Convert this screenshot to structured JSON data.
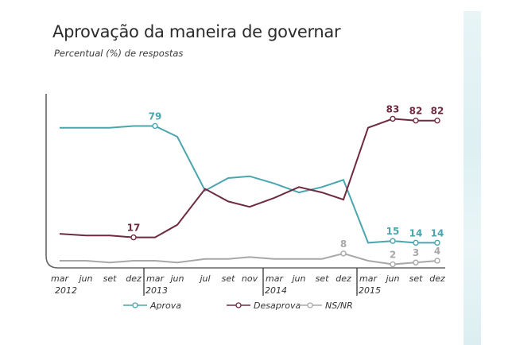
{
  "chart_data": {
    "type": "line",
    "title": "Aprovação da maneira de governar",
    "subtitle": "Percentual (%) de respostas",
    "xlabel": "",
    "ylabel": "",
    "ylim": [
      0,
      90
    ],
    "grid": false,
    "legend_position": "bottom",
    "x": [
      "mar 2012",
      "jun 2012",
      "set 2012",
      "dez 2012",
      "mar 2013",
      "jun 2013",
      "jul 2013",
      "set 2013",
      "nov 2013",
      "mar 2014",
      "jun 2014",
      "set 2014",
      "dez 2014",
      "mar 2015",
      "jun 2015",
      "set 2015",
      "dez 2015"
    ],
    "tick_labels": [
      "mar",
      "jun",
      "set",
      "dez",
      "mar",
      "jun",
      "jul",
      "set",
      "nov",
      "mar",
      "jun",
      "set",
      "dez",
      "mar",
      "jun",
      "set",
      "dez"
    ],
    "year_labels": [
      {
        "label": "2012",
        "index": 0
      },
      {
        "label": "2013",
        "index": 4
      },
      {
        "label": "2014",
        "index": 9
      },
      {
        "label": "2015",
        "index": 13
      }
    ],
    "series": [
      {
        "name": "Aprova",
        "color": "#4aa6ad",
        "values": [
          78,
          78,
          78,
          79,
          79,
          73,
          43,
          50,
          51,
          47,
          42,
          45,
          49,
          14,
          15,
          14,
          14
        ],
        "labels": [
          {
            "index": 4,
            "text": "79"
          },
          {
            "index": 14,
            "text": "15"
          },
          {
            "index": 15,
            "text": "14"
          },
          {
            "index": 16,
            "text": "14"
          }
        ]
      },
      {
        "name": "Desaprova",
        "color": "#6e2b3f",
        "values": [
          19,
          18,
          18,
          17,
          17,
          24,
          44,
          37,
          34,
          39,
          45,
          42,
          38,
          78,
          83,
          82,
          82
        ],
        "labels": [
          {
            "index": 3,
            "text": "17"
          },
          {
            "index": 14,
            "text": "83"
          },
          {
            "index": 15,
            "text": "82"
          },
          {
            "index": 16,
            "text": "82"
          }
        ]
      },
      {
        "name": "NS/NR",
        "color": "#a8a8a8",
        "values": [
          4,
          4,
          3,
          4,
          4,
          3,
          5,
          5,
          6,
          5,
          5,
          5,
          8,
          4,
          2,
          3,
          4
        ],
        "labels": [
          {
            "index": 12,
            "text": "8"
          },
          {
            "index": 14,
            "text": "2"
          },
          {
            "index": 15,
            "text": "3"
          },
          {
            "index": 16,
            "text": "4"
          }
        ]
      }
    ]
  }
}
